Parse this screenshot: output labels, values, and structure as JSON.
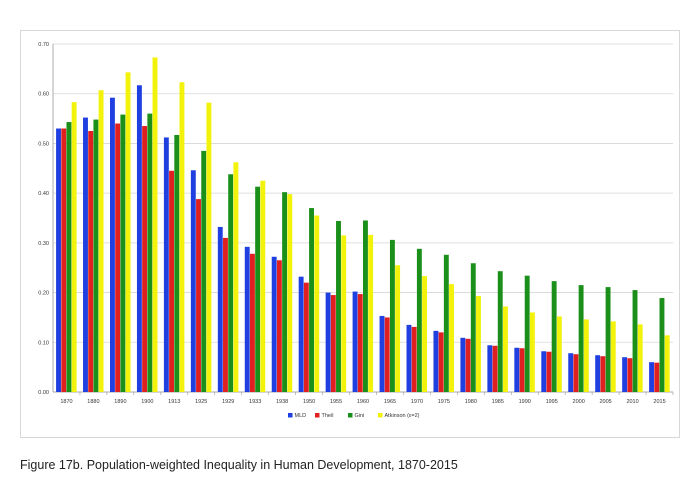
{
  "chart_data": {
    "type": "bar",
    "title": "",
    "xlabel": "",
    "ylabel": "",
    "ylim": [
      0,
      0.7
    ],
    "yticks": [
      "0.00",
      "0.10",
      "0.20",
      "0.30",
      "0.40",
      "0.50",
      "0.60",
      "0.70"
    ],
    "grid": true,
    "legend_position": "bottom-center",
    "categories": [
      "1870",
      "1880",
      "1890",
      "1900",
      "1913",
      "1925",
      "1929",
      "1933",
      "1938",
      "1950",
      "1955",
      "1960",
      "1965",
      "1970",
      "1975",
      "1980",
      "1985",
      "1990",
      "1995",
      "2000",
      "2005",
      "2010",
      "2015"
    ],
    "series": [
      {
        "name": "MLD",
        "color": "#1f3fe0",
        "values": [
          0.53,
          0.552,
          0.592,
          0.617,
          0.512,
          0.446,
          0.332,
          0.292,
          0.272,
          0.232,
          0.2,
          0.202,
          0.153,
          0.135,
          0.123,
          0.109,
          0.094,
          0.089,
          0.082,
          0.078,
          0.074,
          0.07,
          0.06
        ]
      },
      {
        "name": "Theil",
        "color": "#e02020",
        "values": [
          0.53,
          0.525,
          0.54,
          0.535,
          0.445,
          0.388,
          0.31,
          0.278,
          0.265,
          0.22,
          0.195,
          0.197,
          0.15,
          0.131,
          0.12,
          0.107,
          0.093,
          0.088,
          0.081,
          0.076,
          0.072,
          0.068,
          0.059
        ]
      },
      {
        "name": "Gini",
        "color": "#1a8f1a",
        "values": [
          0.543,
          0.548,
          0.558,
          0.56,
          0.517,
          0.485,
          0.438,
          0.413,
          0.402,
          0.37,
          0.344,
          0.345,
          0.306,
          0.288,
          0.276,
          0.259,
          0.243,
          0.234,
          0.223,
          0.215,
          0.211,
          0.205,
          0.189
        ]
      },
      {
        "name": "Atkinson (ε=2)",
        "color": "#f2f20a",
        "values": [
          0.583,
          0.607,
          0.643,
          0.673,
          0.623,
          0.582,
          0.462,
          0.425,
          0.398,
          0.355,
          0.315,
          0.316,
          0.255,
          0.233,
          0.217,
          0.193,
          0.172,
          0.16,
          0.152,
          0.146,
          0.142,
          0.136,
          0.114
        ]
      }
    ]
  },
  "caption": "Figure 17b. Population-weighted Inequality in Human Development, 1870-2015"
}
